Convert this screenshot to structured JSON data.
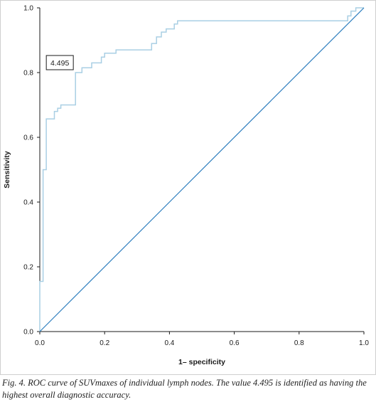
{
  "chart_data": {
    "type": "line",
    "xlabel": "1– specificity",
    "ylabel": "Sensitivity",
    "xlim": [
      0,
      1
    ],
    "ylim": [
      0,
      1
    ],
    "x_ticks": [
      "0.0",
      "0.2",
      "0.4",
      "0.6",
      "0.8",
      "1.0"
    ],
    "y_ticks": [
      "0.0",
      "0.2",
      "0.4",
      "0.6",
      "0.8",
      "1.0"
    ],
    "grid": false,
    "series": [
      {
        "role": "roc-curve",
        "color": "#a9cfe4",
        "points": [
          [
            0.0,
            0.0
          ],
          [
            0.0,
            0.155
          ],
          [
            0.01,
            0.155
          ],
          [
            0.01,
            0.5
          ],
          [
            0.02,
            0.5
          ],
          [
            0.02,
            0.657
          ],
          [
            0.045,
            0.657
          ],
          [
            0.045,
            0.68
          ],
          [
            0.055,
            0.68
          ],
          [
            0.055,
            0.69
          ],
          [
            0.065,
            0.69
          ],
          [
            0.065,
            0.7
          ],
          [
            0.11,
            0.7
          ],
          [
            0.11,
            0.8
          ],
          [
            0.13,
            0.8
          ],
          [
            0.13,
            0.815
          ],
          [
            0.16,
            0.815
          ],
          [
            0.16,
            0.83
          ],
          [
            0.19,
            0.83
          ],
          [
            0.19,
            0.848
          ],
          [
            0.2,
            0.848
          ],
          [
            0.2,
            0.86
          ],
          [
            0.235,
            0.86
          ],
          [
            0.235,
            0.87
          ],
          [
            0.345,
            0.87
          ],
          [
            0.345,
            0.89
          ],
          [
            0.36,
            0.89
          ],
          [
            0.36,
            0.91
          ],
          [
            0.375,
            0.91
          ],
          [
            0.375,
            0.925
          ],
          [
            0.39,
            0.925
          ],
          [
            0.39,
            0.935
          ],
          [
            0.415,
            0.935
          ],
          [
            0.415,
            0.95
          ],
          [
            0.425,
            0.95
          ],
          [
            0.425,
            0.96
          ],
          [
            0.95,
            0.96
          ],
          [
            0.95,
            0.975
          ],
          [
            0.96,
            0.975
          ],
          [
            0.96,
            0.99
          ],
          [
            0.975,
            0.99
          ],
          [
            0.975,
            1.0
          ],
          [
            1.0,
            1.0
          ]
        ]
      },
      {
        "role": "reference-diagonal",
        "color": "#2f7fbf",
        "points": [
          [
            0,
            0
          ],
          [
            1,
            1
          ]
        ]
      }
    ],
    "annotations": [
      {
        "text": "4.495",
        "x": 0.11,
        "y": 0.8
      }
    ]
  },
  "caption": {
    "text": "Fig. 4. ROC curve of SUVmaxes of individual lymph nodes. The value 4.495 is identified as having the highest overall diagnostic accuracy."
  }
}
